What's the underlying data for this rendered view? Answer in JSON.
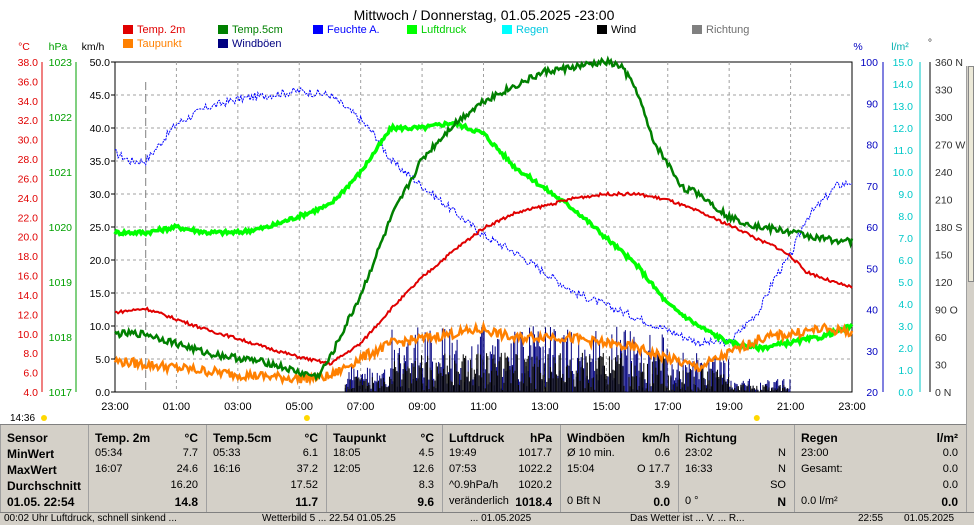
{
  "chart_data": {
    "type": "line",
    "title": "Mittwoch / Donnerstag, 01.05.2025  -23:00",
    "x_labels": [
      "23:00",
      "01:00",
      "03:00",
      "05:00",
      "07:00",
      "09:00",
      "11:00",
      "13:00",
      "15:00",
      "17:00",
      "19:00",
      "21:00",
      "23:00"
    ],
    "x_hours": [
      0,
      2,
      4,
      6,
      8,
      10,
      12,
      14,
      16,
      18,
      20,
      22,
      24
    ],
    "axes": {
      "temp": {
        "unit": "°C",
        "min": 4,
        "max": 38,
        "step": 2,
        "color": "#e00000"
      },
      "hpa": {
        "unit": "hPa",
        "min": 1017,
        "max": 1023,
        "step": 1,
        "color": "#00a000"
      },
      "kmh": {
        "unit": "km/h",
        "min": 0,
        "max": 50,
        "step": 5,
        "color": "#000000"
      },
      "pct": {
        "unit": "%",
        "min": 20,
        "max": 100,
        "step": 10,
        "color": "#0000c0"
      },
      "rain": {
        "unit": "l/m²",
        "min": 0,
        "max": 15,
        "step": 1,
        "color": "#00c8c8"
      },
      "dir": {
        "unit": "°",
        "ticks": [
          0,
          30,
          60,
          90,
          120,
          150,
          180,
          210,
          240,
          270,
          300,
          330,
          360
        ],
        "labels": [
          "0 N",
          "30",
          "60",
          "90 O",
          "120",
          "150",
          "180 S",
          "210",
          "240",
          "270 W",
          "300",
          "330",
          "360 N"
        ],
        "color": "#303030"
      }
    },
    "legend": [
      {
        "name": "Temp. 2m",
        "color": "#e00000"
      },
      {
        "name": "Taupunkt",
        "color": "#ff8000"
      },
      {
        "name": "Temp.5cm",
        "color": "#008000"
      },
      {
        "name": "Windböen",
        "color": "#000080"
      },
      {
        "name": "Feuchte A.",
        "color": "#0000ff"
      },
      {
        "name": "Luftdruck",
        "color": "#00ff00"
      },
      {
        "name": "Regen",
        "color": "#00ffff"
      },
      {
        "name": "Wind",
        "color": "#000000"
      },
      {
        "name": "Richtung",
        "color": "#808080"
      }
    ],
    "series": [
      {
        "name": "Temp. 2m",
        "axis": "temp",
        "color": "#e00000",
        "x": [
          0,
          1,
          2,
          3,
          4,
          5,
          6,
          7,
          8,
          9,
          10,
          11,
          12,
          13,
          14,
          15,
          16,
          17,
          18,
          19,
          20,
          20.5,
          21,
          21.5,
          22,
          22.5,
          23,
          23.5,
          24
        ],
        "values": [
          12.2,
          12.6,
          11.5,
          10.4,
          9.5,
          8.5,
          7.6,
          6.9,
          9.0,
          12.6,
          15.8,
          18.5,
          20.9,
          22.4,
          23.2,
          24.0,
          24.4,
          24.4,
          23.8,
          22.6,
          21.2,
          20.5,
          19.6,
          19.0,
          18.0,
          16.4,
          15.8,
          15.2,
          14.8
        ]
      },
      {
        "name": "Temp.5cm",
        "axis": "temp",
        "color": "#008000",
        "x": [
          0,
          1,
          2,
          3,
          4,
          5,
          6,
          6.6,
          7,
          8,
          9,
          10,
          11,
          12,
          13,
          14,
          15,
          16,
          16.5,
          17,
          17.5,
          18,
          18.5,
          19,
          20,
          21,
          22,
          23,
          24
        ],
        "values": [
          10,
          10,
          9,
          8,
          7.5,
          7,
          6,
          5.6,
          7.5,
          14,
          22,
          28,
          31.5,
          34,
          35.5,
          37,
          37.5,
          38,
          37.5,
          35,
          30,
          27.5,
          25,
          24.5,
          22,
          21,
          20.5,
          19.8,
          19.5
        ]
      },
      {
        "name": "Taupunkt",
        "axis": "temp",
        "color": "#ff8000",
        "x": [
          0,
          2,
          4,
          6,
          7,
          8,
          9,
          10,
          11,
          12,
          13,
          14,
          15,
          16,
          17,
          18,
          19,
          20,
          21,
          22,
          23,
          24
        ],
        "values": [
          7.2,
          6.5,
          5.8,
          5.4,
          5.6,
          7.5,
          9,
          9.5,
          10,
          10.5,
          9.5,
          9.8,
          9.5,
          9,
          8.5,
          7.5,
          6.5,
          8,
          9.5,
          10,
          10.5,
          10.2
        ]
      },
      {
        "name": "Feuchte A.",
        "axis": "pct",
        "color": "#0000ff",
        "x": [
          0,
          0.5,
          1,
          2,
          3,
          4,
          5,
          6,
          7,
          8,
          8.5,
          9,
          10,
          11,
          12,
          13,
          14,
          15,
          16,
          17,
          18,
          19,
          20,
          21,
          21.5,
          22,
          22.5,
          23,
          23.5,
          24
        ],
        "values": [
          78,
          76,
          76,
          85,
          89,
          91,
          92,
          93,
          92,
          86,
          82,
          76,
          70,
          64,
          58,
          54,
          49,
          44,
          41,
          38,
          35,
          32,
          32,
          40,
          48,
          53,
          62,
          66,
          70,
          71
        ]
      },
      {
        "name": "Luftdruck",
        "axis": "hpa",
        "color": "#00ff00",
        "x": [
          0,
          1,
          2,
          3,
          4,
          5,
          6,
          7,
          8,
          9,
          10,
          11,
          12,
          13,
          14,
          15,
          16,
          17,
          18,
          19,
          20,
          21,
          22,
          23,
          24
        ],
        "values": [
          1019.9,
          1019.9,
          1020.0,
          1019.9,
          1019.9,
          1020.0,
          1020.2,
          1020.4,
          1021.0,
          1021.8,
          1021.8,
          1021.9,
          1021.7,
          1021.1,
          1020.7,
          1020.3,
          1019.8,
          1019.3,
          1018.6,
          1018.2,
          1017.9,
          1017.8,
          1017.9,
          1018.0,
          1018.2
        ]
      }
    ],
    "wind_pattern": {
      "axis": "kmh",
      "baseline_color": "#000000",
      "gust_color": "#000080"
    },
    "axis_labels": {
      "left_temp": "°C",
      "left_hpa": "hPa",
      "left_kmh": "km/h",
      "right_pct": "%",
      "right_rain": "l/m²",
      "right_dir": "°"
    },
    "markers": {
      "sunrise": "14:36"
    }
  },
  "stats": {
    "columns": [
      {
        "header": "Sensor",
        "unit": "",
        "rows": [
          [
            "MinWert",
            ""
          ],
          [
            "MaxWert",
            ""
          ],
          [
            "Durchschnitt",
            ""
          ],
          [
            "01.05. 22:54",
            ""
          ]
        ]
      },
      {
        "header": "Temp. 2m",
        "unit": "°C",
        "rows": [
          [
            "05:34",
            "7.7"
          ],
          [
            "16:07",
            "24.6"
          ],
          [
            "",
            "16.20"
          ],
          [
            "",
            "14.8"
          ]
        ]
      },
      {
        "header": "Temp.5cm",
        "unit": "°C",
        "rows": [
          [
            "05:33",
            "6.1"
          ],
          [
            "16:16",
            "37.2"
          ],
          [
            "",
            "17.52"
          ],
          [
            "",
            "11.7"
          ]
        ]
      },
      {
        "header": "Taupunkt",
        "unit": "°C",
        "rows": [
          [
            "18:05",
            "4.5"
          ],
          [
            "12:05",
            "12.6"
          ],
          [
            "",
            "8.3"
          ],
          [
            "",
            "9.6"
          ]
        ]
      },
      {
        "header": "Luftdruck",
        "unit": "hPa",
        "rows": [
          [
            "19:49",
            "1017.7"
          ],
          [
            "07:53",
            "1022.2"
          ],
          [
            "^0.9hPa/h",
            "1020.2"
          ],
          [
            "veränderlich",
            "1018.4"
          ]
        ]
      },
      {
        "header": "Windböen",
        "unit": "km/h",
        "rows": [
          [
            "Ø 10 min.",
            "0.6"
          ],
          [
            "15:04",
            "O 17.7"
          ],
          [
            "",
            "3.9"
          ],
          [
            "0 Bft N",
            "0.0"
          ]
        ]
      },
      {
        "header": "Richtung",
        "unit": "",
        "rows": [
          [
            "23:02",
            "N"
          ],
          [
            "16:33",
            "N"
          ],
          [
            "",
            "SO"
          ],
          [
            "0 °",
            "N"
          ]
        ]
      },
      {
        "header": "Regen",
        "unit": "l/m²",
        "rows": [
          [
            "23:00",
            "0.0"
          ],
          [
            "Gesamt:",
            "0.0"
          ],
          [
            "",
            "0.0"
          ],
          [
            "0.0 l/m²",
            "0.0"
          ]
        ]
      }
    ]
  },
  "statusbar": {
    "left": "00:02  Uhr Luftdruck, schnell sinkend ...",
    "mid": "Wetterbild 5 ... 22.54 01.05.25",
    "date": "... 01.05.2025",
    "right": "Das Wetter ist ... V. ... R...",
    "time": "22:55",
    "rdate": "01.05.2025"
  }
}
